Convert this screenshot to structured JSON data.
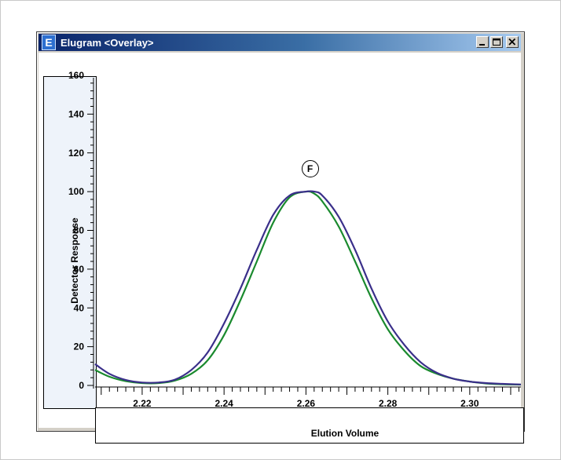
{
  "window": {
    "title": "Elugram <Overlay>",
    "icon_letter": "E",
    "buttons": [
      "minimize",
      "maximize",
      "close"
    ]
  },
  "colors": {
    "title_gradient_start": "#0a246a",
    "title_gradient_end": "#a6caf0",
    "series_green": "#1a8a2e",
    "series_blue": "#3a2f8a",
    "y_panel_bg": "#eef3fa"
  },
  "chart_data": {
    "type": "line",
    "title": "",
    "xlabel": "Elution Volume",
    "ylabel": "Detector Response",
    "xlim": [
      2.2085,
      2.3125
    ],
    "ylim": [
      0,
      160
    ],
    "xticks": [
      2.22,
      2.24,
      2.26,
      2.28,
      2.3
    ],
    "xtick_labels": [
      "2.22",
      "2.24",
      "2.26",
      "2.28",
      "2.30"
    ],
    "yticks": [
      0,
      20,
      40,
      60,
      80,
      100,
      120,
      140,
      160
    ],
    "ytick_labels": [
      "0",
      "20",
      "40",
      "60",
      "80",
      "100",
      "120",
      "140",
      "160"
    ],
    "annotation": {
      "text": "F",
      "x": 2.261,
      "y": 112
    },
    "series": [
      {
        "color": "#1a8a2e",
        "x": [
          2.2085,
          2.212,
          2.216,
          2.22,
          2.224,
          2.228,
          2.232,
          2.236,
          2.24,
          2.244,
          2.248,
          2.252,
          2.256,
          2.26,
          2.262,
          2.264,
          2.268,
          2.272,
          2.276,
          2.28,
          2.284,
          2.288,
          2.292,
          2.296,
          2.3,
          2.304,
          2.308,
          2.3125
        ],
        "y": [
          8,
          4.5,
          2.2,
          1.2,
          1.2,
          2.5,
          6,
          13,
          26,
          44,
          64,
          84,
          97,
          100,
          99,
          95,
          82,
          64,
          45,
          29,
          18,
          10,
          6,
          3.5,
          2,
          1,
          0.6,
          0.4
        ]
      },
      {
        "color": "#3a2f8a",
        "x": [
          2.2085,
          2.212,
          2.216,
          2.22,
          2.224,
          2.228,
          2.232,
          2.236,
          2.24,
          2.244,
          2.248,
          2.252,
          2.256,
          2.26,
          2.262,
          2.264,
          2.268,
          2.272,
          2.276,
          2.28,
          2.284,
          2.288,
          2.292,
          2.296,
          2.3,
          2.304,
          2.308,
          2.3125
        ],
        "y": [
          11,
          6,
          2.8,
          1.5,
          1.5,
          3,
          8,
          17,
          32,
          50,
          70,
          88,
          98,
          100,
          100,
          98,
          87,
          70,
          50,
          33,
          21,
          12,
          6.5,
          3.5,
          2,
          1.2,
          0.8,
          0.5
        ]
      }
    ]
  }
}
